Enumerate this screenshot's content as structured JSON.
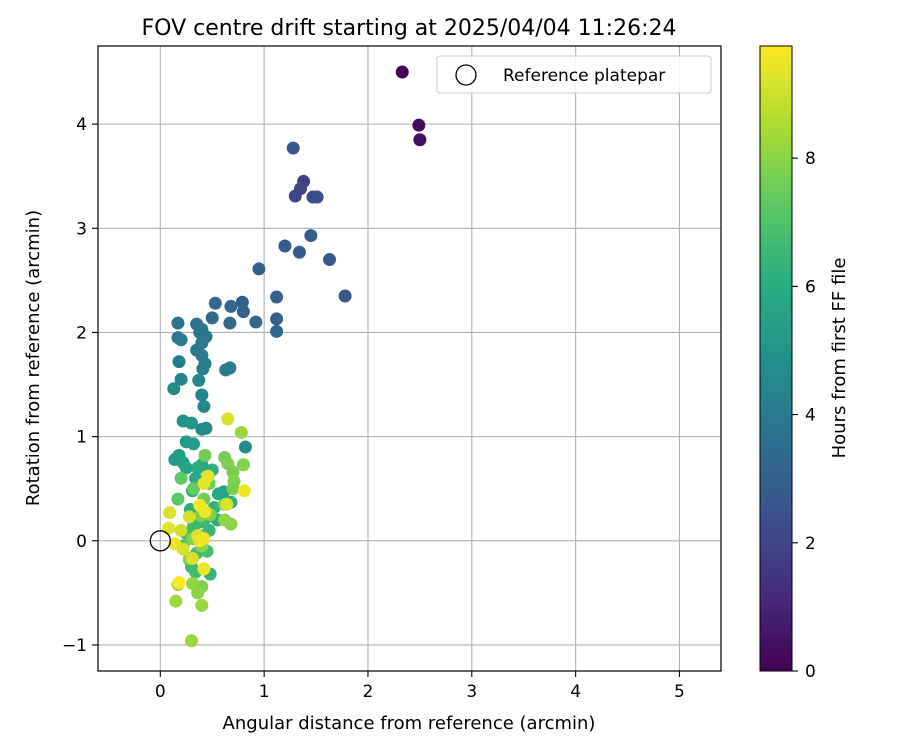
{
  "chart_data": {
    "type": "scatter",
    "title": "FOV centre drift starting at 2025/04/04 11:26:24",
    "xlabel": "Angular distance from reference (arcmin)",
    "ylabel": "Rotation from reference (arcmin)",
    "xlim": [
      -0.6,
      5.4
    ],
    "ylim": [
      -1.25,
      4.75
    ],
    "xticks": [
      0,
      1,
      2,
      3,
      4,
      5
    ],
    "yticks": [
      -1,
      0,
      1,
      2,
      3,
      4
    ],
    "grid": true,
    "legend": {
      "label": "Reference platepar",
      "position": "top-right"
    },
    "reference_point": {
      "x": 0,
      "y": 0
    },
    "colorbar": {
      "label": "Hours from first FF file",
      "colormap": "viridis",
      "range": [
        0,
        9.75
      ],
      "ticks": [
        0,
        2,
        4,
        6,
        8
      ]
    },
    "series": [
      {
        "points": [
          {
            "x": 2.33,
            "y": 4.5,
            "c": 0.05
          },
          {
            "x": 2.49,
            "y": 3.99,
            "c": 0.3
          },
          {
            "x": 2.5,
            "y": 3.85,
            "c": 0.4
          },
          {
            "x": 1.28,
            "y": 3.77,
            "c": 2.7
          },
          {
            "x": 1.38,
            "y": 3.45,
            "c": 1.9
          },
          {
            "x": 1.35,
            "y": 3.38,
            "c": 2.0
          },
          {
            "x": 1.3,
            "y": 3.31,
            "c": 2.1
          },
          {
            "x": 1.47,
            "y": 3.3,
            "c": 2.2
          },
          {
            "x": 1.51,
            "y": 3.3,
            "c": 2.3
          },
          {
            "x": 1.45,
            "y": 2.93,
            "c": 2.9
          },
          {
            "x": 1.2,
            "y": 2.83,
            "c": 2.8
          },
          {
            "x": 1.34,
            "y": 2.77,
            "c": 2.7
          },
          {
            "x": 1.63,
            "y": 2.7,
            "c": 2.7
          },
          {
            "x": 0.95,
            "y": 2.61,
            "c": 3.0
          },
          {
            "x": 1.78,
            "y": 2.35,
            "c": 2.6
          },
          {
            "x": 1.12,
            "y": 2.34,
            "c": 3.1
          },
          {
            "x": 0.53,
            "y": 2.28,
            "c": 3.3
          },
          {
            "x": 0.79,
            "y": 2.29,
            "c": 3.1
          },
          {
            "x": 0.68,
            "y": 2.25,
            "c": 3.2
          },
          {
            "x": 0.8,
            "y": 2.2,
            "c": 3.1
          },
          {
            "x": 0.5,
            "y": 2.14,
            "c": 3.4
          },
          {
            "x": 0.92,
            "y": 2.1,
            "c": 3.2
          },
          {
            "x": 1.12,
            "y": 2.13,
            "c": 3.1
          },
          {
            "x": 0.67,
            "y": 2.09,
            "c": 3.3
          },
          {
            "x": 0.35,
            "y": 2.08,
            "c": 3.6
          },
          {
            "x": 0.17,
            "y": 2.09,
            "c": 3.7
          },
          {
            "x": 0.4,
            "y": 2.03,
            "c": 3.7
          },
          {
            "x": 1.12,
            "y": 2.01,
            "c": 3.3
          },
          {
            "x": 0.38,
            "y": 2.0,
            "c": 3.8
          },
          {
            "x": 0.44,
            "y": 1.96,
            "c": 3.8
          },
          {
            "x": 0.17,
            "y": 1.95,
            "c": 3.8
          },
          {
            "x": 0.2,
            "y": 1.93,
            "c": 3.9
          },
          {
            "x": 0.4,
            "y": 1.9,
            "c": 3.9
          },
          {
            "x": 0.35,
            "y": 1.83,
            "c": 4.0
          },
          {
            "x": 0.4,
            "y": 1.78,
            "c": 4.0
          },
          {
            "x": 0.18,
            "y": 1.72,
            "c": 4.1
          },
          {
            "x": 0.43,
            "y": 1.7,
            "c": 4.0
          },
          {
            "x": 0.41,
            "y": 1.65,
            "c": 4.1
          },
          {
            "x": 0.63,
            "y": 1.64,
            "c": 4.0
          },
          {
            "x": 0.67,
            "y": 1.66,
            "c": 4.1
          },
          {
            "x": 0.2,
            "y": 1.55,
            "c": 4.3
          },
          {
            "x": 0.37,
            "y": 1.54,
            "c": 4.4
          },
          {
            "x": 0.13,
            "y": 1.46,
            "c": 4.6
          },
          {
            "x": 0.4,
            "y": 1.4,
            "c": 4.3
          },
          {
            "x": 0.42,
            "y": 1.29,
            "c": 4.4
          },
          {
            "x": 0.22,
            "y": 1.15,
            "c": 4.9
          },
          {
            "x": 0.3,
            "y": 1.13,
            "c": 5.0
          },
          {
            "x": 0.44,
            "y": 1.08,
            "c": 4.5
          },
          {
            "x": 0.4,
            "y": 1.07,
            "c": 4.6
          },
          {
            "x": 0.25,
            "y": 0.95,
            "c": 5.2
          },
          {
            "x": 0.32,
            "y": 0.93,
            "c": 5.3
          },
          {
            "x": 0.82,
            "y": 0.9,
            "c": 4.7
          },
          {
            "x": 0.18,
            "y": 0.82,
            "c": 5.3
          },
          {
            "x": 0.14,
            "y": 0.78,
            "c": 5.3
          },
          {
            "x": 0.22,
            "y": 0.75,
            "c": 5.5
          },
          {
            "x": 0.25,
            "y": 0.7,
            "c": 5.7
          },
          {
            "x": 0.4,
            "y": 0.73,
            "c": 5.9
          },
          {
            "x": 0.36,
            "y": 0.7,
            "c": 6.1
          },
          {
            "x": 0.5,
            "y": 0.68,
            "c": 6.2
          },
          {
            "x": 0.46,
            "y": 0.62,
            "c": 5.8
          },
          {
            "x": 0.34,
            "y": 0.6,
            "c": 6.0
          },
          {
            "x": 0.56,
            "y": 0.45,
            "c": 5.9
          },
          {
            "x": 0.61,
            "y": 0.47,
            "c": 5.7
          },
          {
            "x": 0.31,
            "y": 0.48,
            "c": 6.0
          },
          {
            "x": 0.68,
            "y": 0.37,
            "c": 6.2
          },
          {
            "x": 0.52,
            "y": 0.32,
            "c": 6.3
          },
          {
            "x": 0.29,
            "y": 0.3,
            "c": 6.2
          },
          {
            "x": 0.44,
            "y": 0.22,
            "c": 6.4
          },
          {
            "x": 0.38,
            "y": 0.18,
            "c": 6.6
          },
          {
            "x": 0.55,
            "y": 0.2,
            "c": 6.1
          },
          {
            "x": 0.32,
            "y": 0.14,
            "c": 6.6
          },
          {
            "x": 0.47,
            "y": 0.1,
            "c": 6.5
          },
          {
            "x": 0.25,
            "y": 0.07,
            "c": 6.7
          },
          {
            "x": 0.41,
            "y": 0.05,
            "c": 6.8
          },
          {
            "x": 0.22,
            "y": -0.05,
            "c": 6.9
          },
          {
            "x": 0.35,
            "y": -0.12,
            "c": 6.8
          },
          {
            "x": 0.28,
            "y": -0.18,
            "c": 6.6
          },
          {
            "x": 0.3,
            "y": -0.25,
            "c": 6.5
          },
          {
            "x": 0.48,
            "y": -0.32,
            "c": 6.4
          },
          {
            "x": 0.34,
            "y": -0.3,
            "c": 6.7
          },
          {
            "x": 0.45,
            "y": -0.1,
            "c": 6.8
          },
          {
            "x": 0.17,
            "y": 0.4,
            "c": 7.2
          },
          {
            "x": 0.2,
            "y": 0.6,
            "c": 7.3
          },
          {
            "x": 0.43,
            "y": 0.82,
            "c": 7.6
          },
          {
            "x": 0.62,
            "y": 0.8,
            "c": 7.6
          },
          {
            "x": 0.65,
            "y": 0.74,
            "c": 7.8
          },
          {
            "x": 0.7,
            "y": 0.66,
            "c": 7.7
          },
          {
            "x": 0.8,
            "y": 0.73,
            "c": 7.9
          },
          {
            "x": 0.78,
            "y": 1.04,
            "c": 8.2
          },
          {
            "x": 0.71,
            "y": 0.57,
            "c": 7.9
          },
          {
            "x": 0.7,
            "y": 0.5,
            "c": 7.7
          },
          {
            "x": 0.47,
            "y": 0.55,
            "c": 7.5
          },
          {
            "x": 0.42,
            "y": 0.4,
            "c": 7.6
          },
          {
            "x": 0.32,
            "y": 0.5,
            "c": 7.4
          },
          {
            "x": 0.62,
            "y": 0.35,
            "c": 7.8
          },
          {
            "x": 0.68,
            "y": 0.16,
            "c": 8.0
          },
          {
            "x": 0.62,
            "y": 0.2,
            "c": 8.1
          },
          {
            "x": 0.48,
            "y": 0.25,
            "c": 7.9
          },
          {
            "x": 0.39,
            "y": 0.24,
            "c": 7.7
          },
          {
            "x": 0.31,
            "y": 0.02,
            "c": 7.9
          },
          {
            "x": 0.4,
            "y": -0.05,
            "c": 8.0
          },
          {
            "x": 0.28,
            "y": -0.17,
            "c": 7.9
          },
          {
            "x": 0.31,
            "y": -0.41,
            "c": 8.1
          },
          {
            "x": 0.4,
            "y": -0.44,
            "c": 7.8
          },
          {
            "x": 0.36,
            "y": -0.5,
            "c": 8.0
          },
          {
            "x": 0.15,
            "y": -0.58,
            "c": 8.3
          },
          {
            "x": 0.4,
            "y": -0.62,
            "c": 8.2
          },
          {
            "x": 0.3,
            "y": -0.96,
            "c": 8.2
          },
          {
            "x": 0.17,
            "y": -0.42,
            "c": 8.4
          },
          {
            "x": 0.65,
            "y": 1.17,
            "c": 9.2
          },
          {
            "x": 0.81,
            "y": 0.48,
            "c": 9.5
          },
          {
            "x": 0.46,
            "y": 0.62,
            "c": 9.3
          },
          {
            "x": 0.42,
            "y": 0.55,
            "c": 9.4
          },
          {
            "x": 0.38,
            "y": 0.34,
            "c": 9.6
          },
          {
            "x": 0.43,
            "y": 0.28,
            "c": 9.5
          },
          {
            "x": 0.64,
            "y": 0.35,
            "c": 9.2
          },
          {
            "x": 0.28,
            "y": 0.23,
            "c": 9.1
          },
          {
            "x": 0.09,
            "y": 0.27,
            "c": 9.2
          },
          {
            "x": 0.08,
            "y": 0.12,
            "c": 9.3
          },
          {
            "x": 0.2,
            "y": 0.1,
            "c": 9.0
          },
          {
            "x": 0.36,
            "y": 0.05,
            "c": 9.2
          },
          {
            "x": 0.38,
            "y": 0.0,
            "c": 9.4
          },
          {
            "x": 0.42,
            "y": 0.02,
            "c": 9.6
          },
          {
            "x": 0.14,
            "y": -0.03,
            "c": 9.5
          },
          {
            "x": 0.22,
            "y": -0.08,
            "c": 9.1
          },
          {
            "x": 0.31,
            "y": -0.17,
            "c": 9.2
          },
          {
            "x": 0.42,
            "y": -0.27,
            "c": 9.5
          },
          {
            "x": 0.18,
            "y": -0.4,
            "c": 9.7
          }
        ]
      }
    ]
  }
}
